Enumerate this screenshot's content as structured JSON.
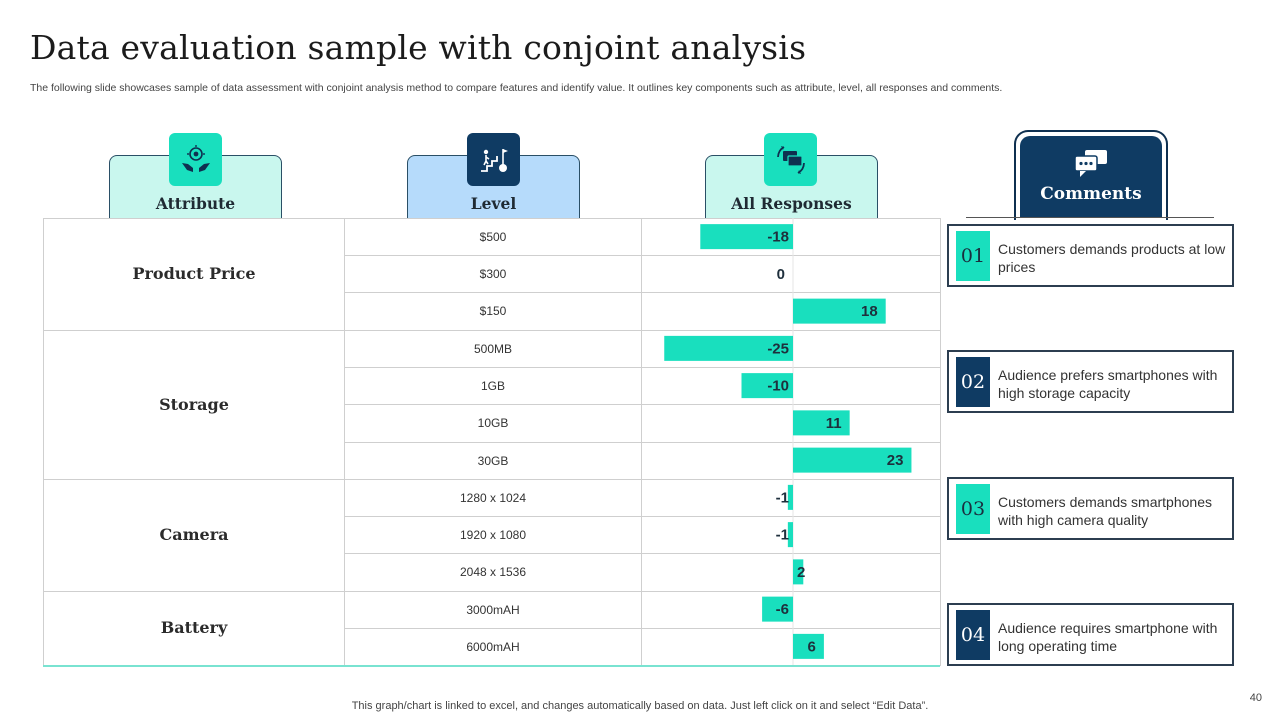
{
  "title": "Data evaluation sample with conjoint analysis",
  "subtitle": "The following slide showcases sample of data assessment with conjoint analysis method to compare features and identify value. It outlines key components such as attribute, level, all responses and comments.",
  "headers": {
    "attribute": "Attribute",
    "level": "Level",
    "responses": "All Responses",
    "comments": "Comments"
  },
  "colors": {
    "teal": "#19dfbe",
    "navy": "#0f3b63",
    "light_teal": "#c9f7ee",
    "light_blue": "#b6dbfb"
  },
  "attributes": [
    {
      "name": "Product Price",
      "levels": [
        "$500",
        "$300",
        "$150"
      ]
    },
    {
      "name": "Storage",
      "levels": [
        "500MB",
        "1GB",
        "10GB",
        "30GB"
      ]
    },
    {
      "name": "Camera",
      "levels": [
        "1280 x 1024",
        "1920 x 1080",
        "2048 x 1536"
      ]
    },
    {
      "name": "Battery",
      "levels": [
        "3000mAH",
        "6000mAH"
      ]
    }
  ],
  "chart_data": {
    "type": "bar",
    "orientation": "horizontal",
    "categories": [
      "$500",
      "$300",
      "$150",
      "500MB",
      "1GB",
      "10GB",
      "30GB",
      "1280 x 1024",
      "1920 x 1080",
      "2048 x 1536",
      "3000mAH",
      "6000mAH"
    ],
    "series": [
      {
        "name": "All Responses",
        "values": [
          -18,
          0,
          18,
          -25,
          -10,
          11,
          23,
          -1,
          -1,
          2,
          -6,
          6
        ]
      }
    ],
    "xlim": [
      -30,
      30
    ],
    "grid": false,
    "legend": "none",
    "bar_color": "#19dfbe"
  },
  "comments": [
    {
      "num": "01",
      "text": "Customers demands products at low prices"
    },
    {
      "num": "02",
      "text": "Audience prefers smartphones with high storage capacity"
    },
    {
      "num": "03",
      "text": "Customers demands smartphones with high camera quality"
    },
    {
      "num": "04",
      "text": "Audience requires smartphone with long operating time"
    }
  ],
  "footer": "This graph/chart is linked to excel, and changes automatically based on data. Just left click on it and select “Edit Data”.",
  "page_number": "40"
}
